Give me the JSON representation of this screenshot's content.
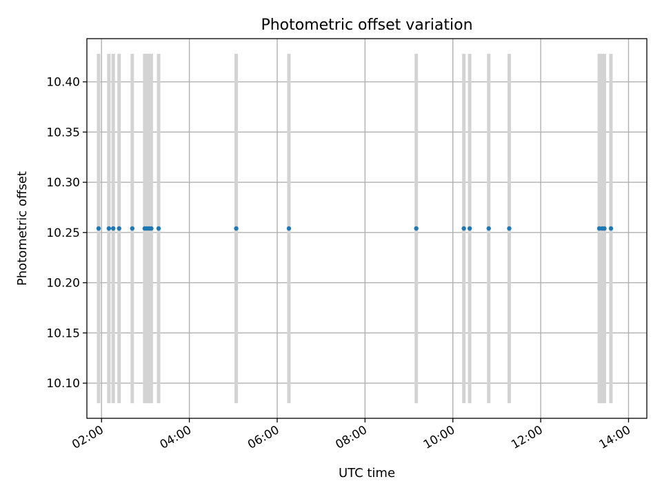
{
  "chart_data": {
    "type": "scatter",
    "title": "Photometric offset variation",
    "xlabel": "UTC time",
    "ylabel": "Photometric offset",
    "x_type": "time",
    "xlim": [
      "01:40",
      "14:25"
    ],
    "ylim": [
      10.065,
      10.443
    ],
    "grid": true,
    "x_ticks": [
      "02:00",
      "04:00",
      "06:00",
      "08:00",
      "10:00",
      "12:00",
      "14:00"
    ],
    "y_ticks": [
      "10.10",
      "10.15",
      "10.20",
      "10.25",
      "10.30",
      "10.35",
      "10.40"
    ],
    "x_tick_rotation": 30,
    "marker_color": "#1f77b4",
    "errorbar_color": "#d3d3d3",
    "series": [
      {
        "x": [
          "01:56",
          "02:10",
          "02:16",
          "02:24",
          "02:42",
          "02:59",
          "03:02",
          "03:05",
          "03:08",
          "03:18",
          "05:04",
          "06:16",
          "09:10",
          "10:15",
          "10:23",
          "10:49",
          "11:17",
          "13:20",
          "13:24",
          "13:27",
          "13:36"
        ],
        "y": [
          10.254,
          10.254,
          10.254,
          10.254,
          10.254,
          10.254,
          10.254,
          10.254,
          10.254,
          10.254,
          10.254,
          10.254,
          10.254,
          10.254,
          10.254,
          10.254,
          10.254,
          10.254,
          10.254,
          10.254,
          10.254
        ],
        "yerr": [
          0.174,
          0.174,
          0.174,
          0.174,
          0.174,
          0.174,
          0.174,
          0.174,
          0.174,
          0.174,
          0.174,
          0.174,
          0.174,
          0.174,
          0.174,
          0.174,
          0.174,
          0.174,
          0.174,
          0.174,
          0.174
        ]
      }
    ]
  }
}
